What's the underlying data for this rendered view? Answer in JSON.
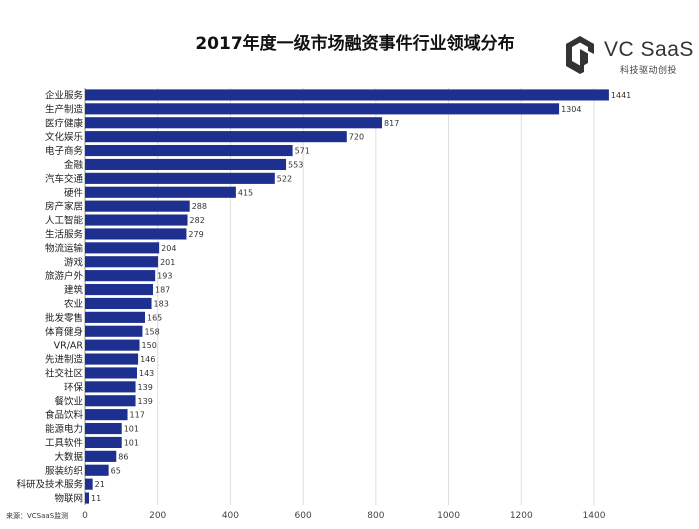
{
  "chart_data": {
    "type": "bar",
    "orientation": "horizontal",
    "title": "2017年度一级市场融资事件行业领域分布",
    "categories": [
      "企业服务",
      "生产制造",
      "医疗健康",
      "文化娱乐",
      "电子商务",
      "金融",
      "汽车交通",
      "硬件",
      "房产家居",
      "人工智能",
      "生活服务",
      "物流运输",
      "游戏",
      "旅游户外",
      "建筑",
      "农业",
      "批发零售",
      "体育健身",
      "VR/AR",
      "先进制造",
      "社交社区",
      "环保",
      "餐饮业",
      "食品饮料",
      "能源电力",
      "工具软件",
      "大数据",
      "服装纺织",
      "科研及技术服务",
      "物联网"
    ],
    "values": [
      1441,
      1304,
      817,
      720,
      571,
      553,
      522,
      415,
      288,
      282,
      279,
      204,
      201,
      193,
      187,
      183,
      165,
      158,
      150,
      146,
      143,
      139,
      139,
      117,
      101,
      101,
      86,
      65,
      21,
      11
    ],
    "xlim": [
      0,
      1400
    ],
    "xticks": [
      0,
      200,
      400,
      600,
      800,
      1000,
      1200,
      1400
    ],
    "grid": "vertical",
    "bar_color": "#1d2f8f"
  },
  "brand": {
    "name": "VC SaaS",
    "tagline": "科技驱动创投",
    "color": "#333333"
  },
  "source": "来源：VCSaaS监测"
}
